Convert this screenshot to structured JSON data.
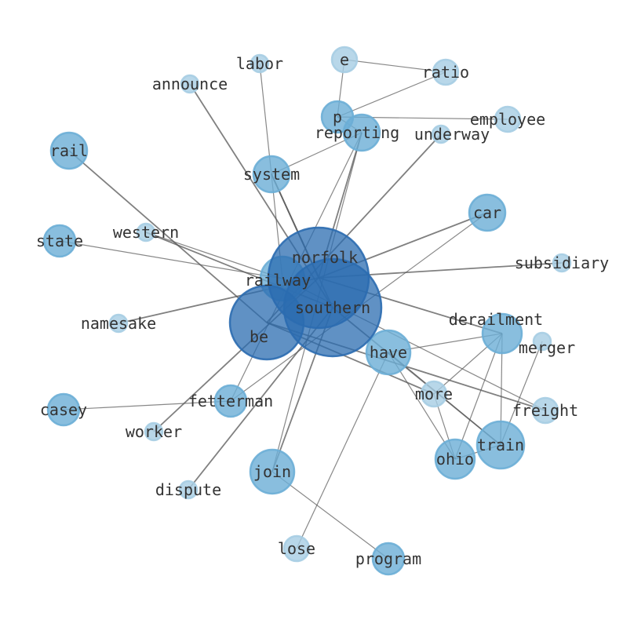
{
  "graph": {
    "colors": {
      "edge": "#555555",
      "node_dark": "#2b6cb0",
      "node_mid": "#6baed6",
      "node_light": "#a6cde3",
      "label": "#333333"
    },
    "nodes": [
      "norfolk",
      "southern",
      "railway",
      "be",
      "have",
      "system",
      "reporting",
      "p",
      "e",
      "ratio",
      "employee",
      "underway",
      "labor",
      "announce",
      "rail",
      "state",
      "western",
      "car",
      "subsidiary",
      "namesake",
      "derailment",
      "merger",
      "more",
      "freight",
      "train",
      "ohio",
      "fetterman",
      "casey",
      "worker",
      "dispute",
      "join",
      "lose",
      "program"
    ],
    "edges": [
      [
        "e",
        "p"
      ],
      [
        "e",
        "ratio"
      ],
      [
        "p",
        "ratio"
      ],
      [
        "p",
        "employee"
      ],
      [
        "p",
        "reporting"
      ],
      [
        "reporting",
        "system"
      ],
      [
        "system",
        "southern"
      ],
      [
        "system",
        "norfolk"
      ],
      [
        "reporting",
        "join"
      ],
      [
        "reporting",
        "fetterman"
      ],
      [
        "reporting",
        "norfolk"
      ],
      [
        "underway",
        "be"
      ],
      [
        "labor",
        "railway"
      ],
      [
        "announce",
        "southern"
      ],
      [
        "rail",
        "be"
      ],
      [
        "state",
        "railway"
      ],
      [
        "western",
        "railway"
      ],
      [
        "western",
        "southern"
      ],
      [
        "car",
        "fetterman"
      ],
      [
        "car",
        "norfolk"
      ],
      [
        "subsidiary",
        "norfolk"
      ],
      [
        "namesake",
        "norfolk"
      ],
      [
        "derailment",
        "have"
      ],
      [
        "derailment",
        "ohio"
      ],
      [
        "derailment",
        "train"
      ],
      [
        "derailment",
        "more"
      ],
      [
        "norfolk",
        "derailment"
      ],
      [
        "have",
        "train"
      ],
      [
        "southern",
        "train"
      ],
      [
        "railway",
        "freight"
      ],
      [
        "be",
        "freight"
      ],
      [
        "casey",
        "fetterman"
      ],
      [
        "worker",
        "norfolk"
      ],
      [
        "dispute",
        "southern"
      ],
      [
        "join",
        "southern"
      ],
      [
        "join",
        "program"
      ],
      [
        "lose",
        "have"
      ],
      [
        "more",
        "ohio"
      ],
      [
        "have",
        "ohio"
      ],
      [
        "be",
        "more"
      ],
      [
        "ohio",
        "train"
      ],
      [
        "merger",
        "train"
      ]
    ]
  }
}
